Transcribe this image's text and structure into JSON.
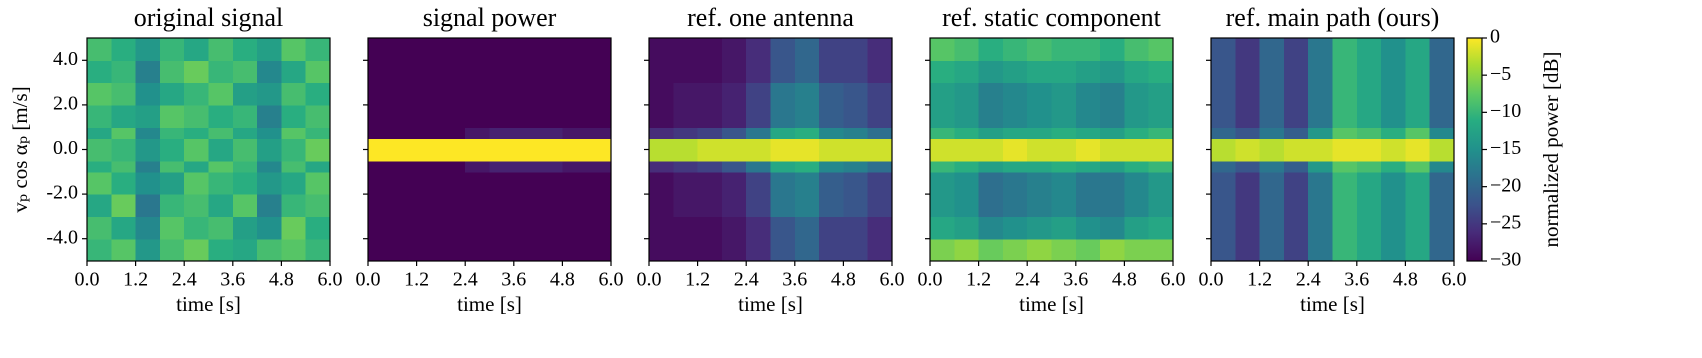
{
  "chart_data": [
    {
      "type": "heatmap",
      "title": "original signal",
      "xlabel": "time [s]",
      "ylabel": "vₚ cos αₚ [m/s]",
      "xlim": [
        0,
        6
      ],
      "ylim": [
        -5,
        5
      ],
      "xticks": [
        {
          "value": 0,
          "label": "0.0"
        },
        {
          "value": 1.2,
          "label": "1.2"
        },
        {
          "value": 2.4,
          "label": "2.4"
        },
        {
          "value": 3.6,
          "label": "3.6"
        },
        {
          "value": 4.8,
          "label": "4.8"
        },
        {
          "value": 6,
          "label": "6.0"
        }
      ],
      "yticks": [
        {
          "value": -4,
          "label": "-4.0"
        },
        {
          "value": -2,
          "label": "-2.0"
        },
        {
          "value": 0,
          "label": "0.0"
        },
        {
          "value": 2,
          "label": "2.0"
        },
        {
          "value": 4,
          "label": "4.0"
        }
      ],
      "xbins": [
        0,
        0.6,
        1.2,
        1.8,
        2.4,
        3,
        3.6,
        4.2,
        4.8,
        5.4,
        6
      ],
      "ybins": [
        -5,
        -4,
        -3,
        -2,
        -1,
        -0.5,
        0.5,
        1,
        2,
        3,
        4,
        5
      ],
      "z": [
        [
          -10,
          -8,
          -14,
          -9,
          -7,
          -11,
          -12,
          -9,
          -8,
          -10
        ],
        [
          -9,
          -12,
          -16,
          -8,
          -10,
          -9,
          -13,
          -15,
          -7,
          -11
        ],
        [
          -12,
          -7,
          -18,
          -10,
          -9,
          -12,
          -8,
          -17,
          -10,
          -9
        ],
        [
          -8,
          -11,
          -15,
          -13,
          -8,
          -10,
          -11,
          -14,
          -12,
          -8
        ],
        [
          -11,
          -9,
          -17,
          -9,
          -12,
          -8,
          -10,
          -16,
          -9,
          -12
        ],
        [
          -9,
          -10,
          -14,
          -11,
          -8,
          -12,
          -9,
          -13,
          -10,
          -7
        ],
        [
          -12,
          -8,
          -16,
          -10,
          -11,
          -9,
          -12,
          -15,
          -8,
          -10
        ],
        [
          -10,
          -12,
          -13,
          -8,
          -9,
          -11,
          -10,
          -17,
          -11,
          -9
        ],
        [
          -8,
          -9,
          -15,
          -12,
          -10,
          -8,
          -13,
          -14,
          -9,
          -11
        ],
        [
          -11,
          -10,
          -17,
          -9,
          -7,
          -10,
          -9,
          -16,
          -12,
          -8
        ],
        [
          -9,
          -11,
          -14,
          -10,
          -12,
          -9,
          -11,
          -13,
          -8,
          -10
        ]
      ]
    },
    {
      "type": "heatmap",
      "title": "signal power",
      "xlabel": "time [s]",
      "xlim": [
        0,
        6
      ],
      "ylim": [
        -5,
        5
      ],
      "xticks": [
        {
          "value": 0,
          "label": "0.0"
        },
        {
          "value": 1.2,
          "label": "1.2"
        },
        {
          "value": 2.4,
          "label": "2.4"
        },
        {
          "value": 3.6,
          "label": "3.6"
        },
        {
          "value": 4.8,
          "label": "4.8"
        },
        {
          "value": 6,
          "label": "6.0"
        }
      ],
      "yticks": [
        -4,
        -2,
        0,
        2,
        4
      ],
      "xbins": [
        0,
        0.6,
        1.2,
        1.8,
        2.4,
        3,
        3.6,
        4.2,
        4.8,
        5.4,
        6
      ],
      "ybins": [
        -5,
        -4,
        -3,
        -2,
        -1,
        -0.5,
        0.5,
        1,
        2,
        3,
        4,
        5
      ],
      "z": [
        [
          -30,
          -30,
          -30,
          -30,
          -30,
          -30,
          -30,
          -30,
          -30,
          -30
        ],
        [
          -30,
          -30,
          -30,
          -30,
          -30,
          -30,
          -30,
          -30,
          -30,
          -30
        ],
        [
          -30,
          -30,
          -30,
          -30,
          -30,
          -30,
          -30,
          -30,
          -30,
          -30
        ],
        [
          -30,
          -30,
          -30,
          -30,
          -30,
          -30,
          -30,
          -30,
          -30,
          -30
        ],
        [
          -30,
          -30,
          -30,
          -30,
          -28,
          -27,
          -27,
          -27,
          -28,
          -28
        ],
        [
          0,
          0,
          0,
          0,
          0,
          0,
          0,
          0,
          0,
          0
        ],
        [
          -30,
          -30,
          -30,
          -30,
          -28,
          -27,
          -27,
          -27,
          -28,
          -28
        ],
        [
          -30,
          -30,
          -30,
          -30,
          -30,
          -30,
          -30,
          -30,
          -30,
          -30
        ],
        [
          -30,
          -30,
          -30,
          -30,
          -30,
          -30,
          -30,
          -30,
          -30,
          -30
        ],
        [
          -30,
          -30,
          -30,
          -30,
          -30,
          -30,
          -30,
          -30,
          -30,
          -30
        ],
        [
          -30,
          -30,
          -30,
          -30,
          -30,
          -30,
          -30,
          -30,
          -30,
          -30
        ]
      ]
    },
    {
      "type": "heatmap",
      "title": "ref. one antenna",
      "xlabel": "time [s]",
      "xlim": [
        0,
        6
      ],
      "ylim": [
        -5,
        5
      ],
      "xticks": [
        {
          "value": 0,
          "label": "0.0"
        },
        {
          "value": 1.2,
          "label": "1.2"
        },
        {
          "value": 2.4,
          "label": "2.4"
        },
        {
          "value": 3.6,
          "label": "3.6"
        },
        {
          "value": 4.8,
          "label": "4.8"
        },
        {
          "value": 6,
          "label": "6.0"
        }
      ],
      "yticks": [
        -4,
        -2,
        0,
        2,
        4
      ],
      "xbins": [
        0,
        0.6,
        1.2,
        1.8,
        2.4,
        3,
        3.6,
        4.2,
        4.8,
        5.4,
        6
      ],
      "ybins": [
        -5,
        -4,
        -3,
        -2,
        -1,
        -0.5,
        0.5,
        1,
        2,
        3,
        4,
        5
      ],
      "z": [
        [
          -29,
          -29,
          -29,
          -28,
          -26,
          -22,
          -20,
          -24,
          -24,
          -26
        ],
        [
          -29,
          -29,
          -29,
          -28,
          -26,
          -22,
          -20,
          -24,
          -24,
          -26
        ],
        [
          -29,
          -28,
          -28,
          -27,
          -24,
          -18,
          -17,
          -21,
          -22,
          -24
        ],
        [
          -29,
          -28,
          -28,
          -27,
          -24,
          -18,
          -17,
          -21,
          -22,
          -24
        ],
        [
          -26,
          -25,
          -24,
          -22,
          -18,
          -12,
          -11,
          -16,
          -17,
          -19
        ],
        [
          -3,
          -3,
          -2,
          -2,
          -2,
          -1,
          -1,
          -2,
          -2,
          -2
        ],
        [
          -26,
          -25,
          -24,
          -22,
          -18,
          -12,
          -11,
          -16,
          -17,
          -19
        ],
        [
          -29,
          -28,
          -28,
          -27,
          -24,
          -18,
          -17,
          -21,
          -22,
          -24
        ],
        [
          -29,
          -28,
          -28,
          -27,
          -24,
          -18,
          -17,
          -21,
          -22,
          -24
        ],
        [
          -29,
          -29,
          -29,
          -28,
          -26,
          -22,
          -20,
          -24,
          -24,
          -26
        ],
        [
          -29,
          -29,
          -29,
          -28,
          -26,
          -22,
          -20,
          -24,
          -24,
          -26
        ]
      ]
    },
    {
      "type": "heatmap",
      "title": "ref. static component",
      "xlabel": "time [s]",
      "xlim": [
        0,
        6
      ],
      "ylim": [
        -5,
        5
      ],
      "xticks": [
        {
          "value": 0,
          "label": "0.0"
        },
        {
          "value": 1.2,
          "label": "1.2"
        },
        {
          "value": 2.4,
          "label": "2.4"
        },
        {
          "value": 3.6,
          "label": "3.6"
        },
        {
          "value": 4.8,
          "label": "4.8"
        },
        {
          "value": 6,
          "label": "6.0"
        }
      ],
      "yticks": [
        -4,
        -2,
        0,
        2,
        4
      ],
      "xbins": [
        0,
        0.6,
        1.2,
        1.8,
        2.4,
        3,
        3.6,
        4.2,
        4.8,
        5.4,
        6
      ],
      "ybins": [
        -5,
        -4,
        -3,
        -2,
        -1,
        -0.5,
        0.5,
        1,
        2,
        3,
        4,
        5
      ],
      "z": [
        [
          -6,
          -5,
          -7,
          -6,
          -5,
          -6,
          -7,
          -5,
          -6,
          -6
        ],
        [
          -12,
          -13,
          -16,
          -15,
          -14,
          -13,
          -15,
          -16,
          -13,
          -12
        ],
        [
          -14,
          -15,
          -19,
          -18,
          -17,
          -16,
          -18,
          -18,
          -16,
          -14
        ],
        [
          -14,
          -15,
          -19,
          -18,
          -17,
          -16,
          -18,
          -18,
          -16,
          -14
        ],
        [
          -10,
          -11,
          -13,
          -12,
          -12,
          -11,
          -12,
          -13,
          -11,
          -10
        ],
        [
          -2,
          -2,
          -2,
          -1,
          -2,
          -2,
          -1,
          -2,
          -2,
          -2
        ],
        [
          -10,
          -11,
          -13,
          -12,
          -12,
          -11,
          -12,
          -13,
          -11,
          -10
        ],
        [
          -13,
          -14,
          -17,
          -16,
          -15,
          -14,
          -16,
          -17,
          -14,
          -13
        ],
        [
          -13,
          -14,
          -17,
          -16,
          -15,
          -14,
          -16,
          -17,
          -14,
          -13
        ],
        [
          -11,
          -12,
          -14,
          -13,
          -12,
          -12,
          -13,
          -14,
          -12,
          -11
        ],
        [
          -8,
          -9,
          -11,
          -10,
          -9,
          -10,
          -10,
          -11,
          -9,
          -8
        ]
      ]
    },
    {
      "type": "heatmap",
      "title": "ref. main path (ours)",
      "xlabel": "time [s]",
      "xlim": [
        0,
        6
      ],
      "ylim": [
        -5,
        5
      ],
      "xticks": [
        {
          "value": 0,
          "label": "0.0"
        },
        {
          "value": 1.2,
          "label": "1.2"
        },
        {
          "value": 2.4,
          "label": "2.4"
        },
        {
          "value": 3.6,
          "label": "3.6"
        },
        {
          "value": 4.8,
          "label": "4.8"
        },
        {
          "value": 6,
          "label": "6.0"
        }
      ],
      "yticks": [
        -4,
        -2,
        0,
        2,
        4
      ],
      "xbins": [
        0,
        0.6,
        1.2,
        1.8,
        2.4,
        3,
        3.6,
        4.2,
        4.8,
        5.4,
        6
      ],
      "ybins": [
        -5,
        -4,
        -3,
        -2,
        -1,
        -0.5,
        0.5,
        1,
        2,
        3,
        4,
        5
      ],
      "z": [
        [
          -22,
          -25,
          -20,
          -24,
          -18,
          -10,
          -12,
          -15,
          -12,
          -20
        ],
        [
          -22,
          -25,
          -20,
          -24,
          -18,
          -10,
          -12,
          -15,
          -12,
          -20
        ],
        [
          -22,
          -25,
          -20,
          -24,
          -18,
          -10,
          -12,
          -15,
          -12,
          -20
        ],
        [
          -22,
          -25,
          -20,
          -24,
          -18,
          -10,
          -12,
          -15,
          -12,
          -20
        ],
        [
          -20,
          -22,
          -18,
          -21,
          -14,
          -8,
          -9,
          -11,
          -8,
          -16
        ],
        [
          -3,
          -2,
          -3,
          -2,
          -2,
          -1,
          -1,
          -2,
          -1,
          -3
        ],
        [
          -20,
          -22,
          -18,
          -21,
          -14,
          -8,
          -9,
          -11,
          -8,
          -16
        ],
        [
          -22,
          -25,
          -20,
          -24,
          -18,
          -10,
          -12,
          -15,
          -12,
          -20
        ],
        [
          -22,
          -25,
          -20,
          -24,
          -18,
          -10,
          -12,
          -15,
          -12,
          -20
        ],
        [
          -22,
          -25,
          -20,
          -24,
          -18,
          -10,
          -12,
          -15,
          -12,
          -20
        ],
        [
          -22,
          -25,
          -20,
          -24,
          -18,
          -10,
          -12,
          -15,
          -12,
          -20
        ]
      ]
    }
  ],
  "colorbar": {
    "label": "normalized power [dB]",
    "colormap": "viridis",
    "lim": [
      -30,
      0
    ],
    "ticks": [
      0,
      {
        "value": -5,
        "label": "−5"
      },
      {
        "value": -10,
        "label": "−10"
      },
      {
        "value": -15,
        "label": "−15"
      },
      {
        "value": -20,
        "label": "−20"
      },
      {
        "value": -25,
        "label": "−25"
      },
      {
        "value": -30,
        "label": "−30"
      }
    ]
  }
}
